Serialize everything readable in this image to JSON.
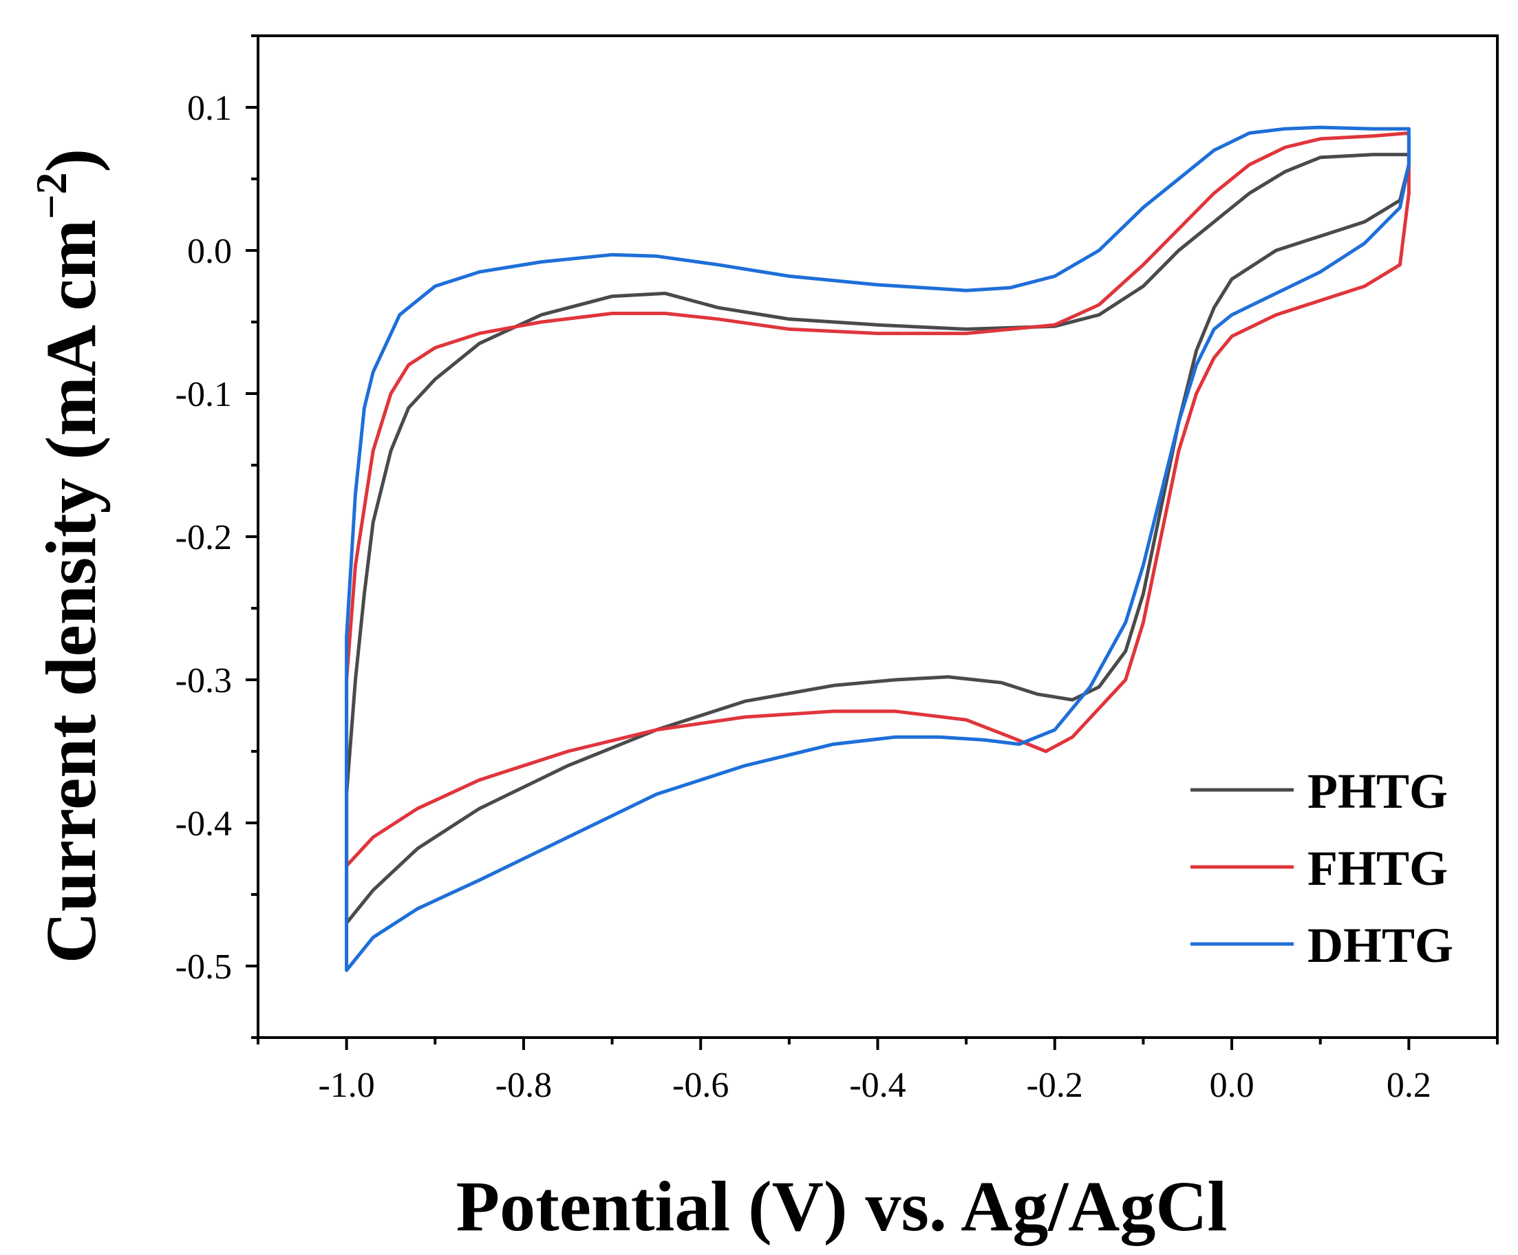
{
  "chart_data": {
    "type": "line",
    "title": "",
    "xlabel": "Potential (V) vs. Ag/AgCl",
    "ylabel": {
      "main": "Current density (mA cm",
      "sup": "−2",
      "close": ")"
    },
    "xlim": [
      -1.1,
      0.3
    ],
    "ylim": [
      -0.55,
      0.15
    ],
    "x_ticks": [
      -1.0,
      -0.8,
      -0.6,
      -0.4,
      -0.2,
      0.0,
      0.2
    ],
    "x_tick_labels": [
      "-1.0",
      "-0.8",
      "-0.6",
      "-0.4",
      "-0.2",
      "0.0",
      "0.2"
    ],
    "y_ticks": [
      0.1,
      0.0,
      -0.1,
      -0.2,
      -0.3,
      -0.4,
      -0.5
    ],
    "y_tick_labels": [
      "0.1",
      "0.0",
      "-0.1",
      "-0.2",
      "-0.3",
      "-0.4",
      "-0.5"
    ],
    "grid": false,
    "legend_position": "bottom-right",
    "series": [
      {
        "name": "PHTG",
        "color": "#4a4a4a",
        "points": [
          [
            -1.0,
            -0.47
          ],
          [
            -0.97,
            -0.447
          ],
          [
            -0.92,
            -0.418
          ],
          [
            -0.85,
            -0.39
          ],
          [
            -0.75,
            -0.36
          ],
          [
            -0.65,
            -0.335
          ],
          [
            -0.55,
            -0.315
          ],
          [
            -0.45,
            -0.304
          ],
          [
            -0.38,
            -0.3
          ],
          [
            -0.32,
            -0.298
          ],
          [
            -0.26,
            -0.302
          ],
          [
            -0.22,
            -0.31
          ],
          [
            -0.18,
            -0.314
          ],
          [
            -0.15,
            -0.305
          ],
          [
            -0.12,
            -0.28
          ],
          [
            -0.1,
            -0.24
          ],
          [
            -0.08,
            -0.18
          ],
          [
            -0.06,
            -0.12
          ],
          [
            -0.04,
            -0.07
          ],
          [
            -0.02,
            -0.04
          ],
          [
            0.0,
            -0.02
          ],
          [
            0.05,
            0.0
          ],
          [
            0.1,
            0.01
          ],
          [
            0.15,
            0.02
          ],
          [
            0.19,
            0.035
          ],
          [
            0.2,
            0.06
          ],
          [
            0.2,
            0.067
          ],
          [
            0.16,
            0.067
          ],
          [
            0.1,
            0.065
          ],
          [
            0.06,
            0.055
          ],
          [
            0.02,
            0.04
          ],
          [
            -0.02,
            0.02
          ],
          [
            -0.06,
            0.0
          ],
          [
            -0.1,
            -0.025
          ],
          [
            -0.15,
            -0.045
          ],
          [
            -0.2,
            -0.053
          ],
          [
            -0.3,
            -0.055
          ],
          [
            -0.4,
            -0.052
          ],
          [
            -0.5,
            -0.048
          ],
          [
            -0.58,
            -0.04
          ],
          [
            -0.64,
            -0.03
          ],
          [
            -0.7,
            -0.032
          ],
          [
            -0.78,
            -0.045
          ],
          [
            -0.85,
            -0.065
          ],
          [
            -0.9,
            -0.09
          ],
          [
            -0.93,
            -0.11
          ],
          [
            -0.95,
            -0.14
          ],
          [
            -0.97,
            -0.19
          ],
          [
            -0.98,
            -0.24
          ],
          [
            -0.99,
            -0.3
          ],
          [
            -1.0,
            -0.38
          ],
          [
            -1.0,
            -0.47
          ]
        ]
      },
      {
        "name": "FHTG",
        "color": "#e0353b",
        "points": [
          [
            -1.0,
            -0.43
          ],
          [
            -0.97,
            -0.41
          ],
          [
            -0.92,
            -0.39
          ],
          [
            -0.85,
            -0.37
          ],
          [
            -0.75,
            -0.35
          ],
          [
            -0.65,
            -0.335
          ],
          [
            -0.55,
            -0.326
          ],
          [
            -0.45,
            -0.322
          ],
          [
            -0.38,
            -0.322
          ],
          [
            -0.3,
            -0.328
          ],
          [
            -0.25,
            -0.34
          ],
          [
            -0.21,
            -0.35
          ],
          [
            -0.18,
            -0.34
          ],
          [
            -0.15,
            -0.32
          ],
          [
            -0.12,
            -0.3
          ],
          [
            -0.1,
            -0.26
          ],
          [
            -0.08,
            -0.2
          ],
          [
            -0.06,
            -0.14
          ],
          [
            -0.04,
            -0.1
          ],
          [
            -0.02,
            -0.075
          ],
          [
            0.0,
            -0.06
          ],
          [
            0.05,
            -0.045
          ],
          [
            0.1,
            -0.035
          ],
          [
            0.15,
            -0.025
          ],
          [
            0.19,
            -0.01
          ],
          [
            0.2,
            0.04
          ],
          [
            0.2,
            0.082
          ],
          [
            0.16,
            0.08
          ],
          [
            0.1,
            0.078
          ],
          [
            0.06,
            0.072
          ],
          [
            0.02,
            0.06
          ],
          [
            -0.02,
            0.04
          ],
          [
            -0.06,
            0.015
          ],
          [
            -0.1,
            -0.01
          ],
          [
            -0.15,
            -0.038
          ],
          [
            -0.2,
            -0.052
          ],
          [
            -0.3,
            -0.058
          ],
          [
            -0.4,
            -0.058
          ],
          [
            -0.5,
            -0.055
          ],
          [
            -0.58,
            -0.048
          ],
          [
            -0.64,
            -0.044
          ],
          [
            -0.7,
            -0.044
          ],
          [
            -0.78,
            -0.05
          ],
          [
            -0.85,
            -0.058
          ],
          [
            -0.9,
            -0.068
          ],
          [
            -0.93,
            -0.08
          ],
          [
            -0.95,
            -0.1
          ],
          [
            -0.97,
            -0.14
          ],
          [
            -0.98,
            -0.18
          ],
          [
            -0.99,
            -0.22
          ],
          [
            -1.0,
            -0.3
          ],
          [
            -1.0,
            -0.43
          ]
        ]
      },
      {
        "name": "DHTG",
        "color": "#1e6fd9",
        "points": [
          [
            -1.0,
            -0.503
          ],
          [
            -0.97,
            -0.48
          ],
          [
            -0.92,
            -0.46
          ],
          [
            -0.85,
            -0.44
          ],
          [
            -0.75,
            -0.41
          ],
          [
            -0.65,
            -0.38
          ],
          [
            -0.55,
            -0.36
          ],
          [
            -0.45,
            -0.345
          ],
          [
            -0.38,
            -0.34
          ],
          [
            -0.33,
            -0.34
          ],
          [
            -0.28,
            -0.342
          ],
          [
            -0.24,
            -0.345
          ],
          [
            -0.2,
            -0.335
          ],
          [
            -0.16,
            -0.305
          ],
          [
            -0.12,
            -0.26
          ],
          [
            -0.1,
            -0.22
          ],
          [
            -0.08,
            -0.17
          ],
          [
            -0.06,
            -0.12
          ],
          [
            -0.04,
            -0.08
          ],
          [
            -0.02,
            -0.055
          ],
          [
            0.0,
            -0.045
          ],
          [
            0.05,
            -0.03
          ],
          [
            0.1,
            -0.015
          ],
          [
            0.15,
            0.005
          ],
          [
            0.19,
            0.03
          ],
          [
            0.2,
            0.06
          ],
          [
            0.2,
            0.085
          ],
          [
            0.16,
            0.085
          ],
          [
            0.1,
            0.086
          ],
          [
            0.06,
            0.085
          ],
          [
            0.02,
            0.082
          ],
          [
            -0.02,
            0.07
          ],
          [
            -0.06,
            0.05
          ],
          [
            -0.1,
            0.03
          ],
          [
            -0.15,
            0.0
          ],
          [
            -0.2,
            -0.018
          ],
          [
            -0.25,
            -0.026
          ],
          [
            -0.3,
            -0.028
          ],
          [
            -0.4,
            -0.024
          ],
          [
            -0.5,
            -0.018
          ],
          [
            -0.58,
            -0.01
          ],
          [
            -0.65,
            -0.004
          ],
          [
            -0.7,
            -0.003
          ],
          [
            -0.78,
            -0.008
          ],
          [
            -0.85,
            -0.015
          ],
          [
            -0.9,
            -0.025
          ],
          [
            -0.94,
            -0.045
          ],
          [
            -0.97,
            -0.085
          ],
          [
            -0.98,
            -0.11
          ],
          [
            -0.99,
            -0.17
          ],
          [
            -1.0,
            -0.27
          ],
          [
            -1.0,
            -0.503
          ]
        ]
      }
    ]
  }
}
